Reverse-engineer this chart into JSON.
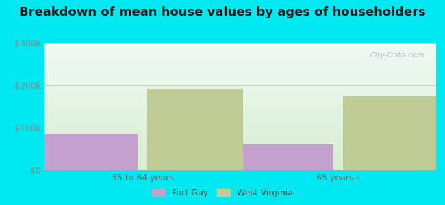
{
  "title": "Breakdown of mean house values by ages of householders",
  "categories": [
    "35 to 64 years",
    "65 years+"
  ],
  "fort_gay_values": [
    85000,
    62000
  ],
  "west_virginia_values": [
    192000,
    175000
  ],
  "fort_gay_color": "#c4a0cc",
  "west_virginia_color": "#c0cc96",
  "ylim": [
    0,
    300000
  ],
  "yticks": [
    0,
    100000,
    200000,
    300000
  ],
  "ytick_labels": [
    "$0",
    "$100k",
    "$200k",
    "$300k"
  ],
  "legend_labels": [
    "Fort Gay",
    "West Virginia"
  ],
  "background_color": "#00e8f0",
  "title_fontsize": 13,
  "bar_width": 0.28,
  "watermark": "City-Data.com"
}
